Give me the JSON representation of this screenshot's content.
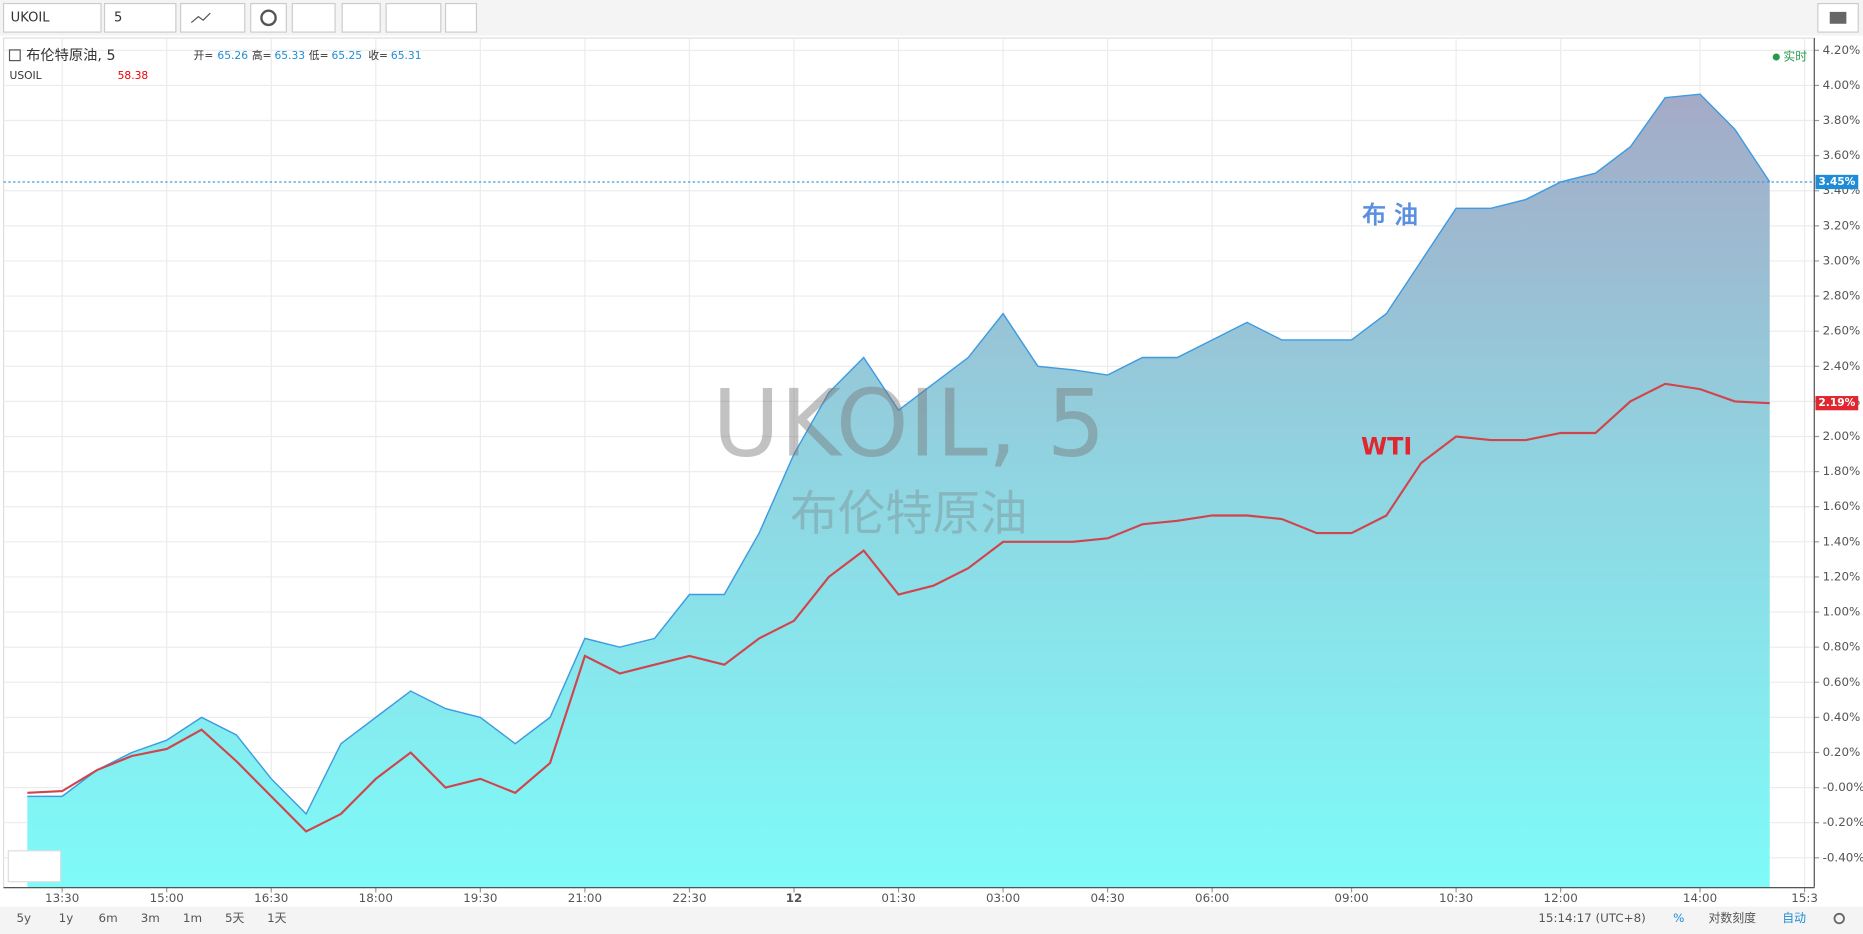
{
  "toolbar": {
    "symbol": "UKOIL",
    "interval": "5"
  },
  "legend": {
    "open_label": "开=",
    "open": 65.26,
    "high_label": "高=",
    "high": 65.33,
    "low_label": "低=",
    "low": 65.25,
    "close_label": "收=",
    "close": 65.31,
    "usoil_value": 58.38
  },
  "status": "实时",
  "watermark": {
    "symbol": "UKOIL, 5",
    "name": "布伦特原油"
  },
  "chart_data": {
    "type": "line",
    "categories": [
      null,
      "13:30",
      null,
      null,
      "15:00",
      null,
      null,
      "16:30",
      null,
      null,
      "18:00",
      null,
      null,
      "19:30",
      null,
      null,
      "21:00",
      null,
      null,
      "22:30",
      null,
      null,
      "12",
      null,
      null,
      "01:30",
      null,
      null,
      "03:00",
      null,
      null,
      "04:30",
      null,
      null,
      "06:00",
      null,
      null,
      null,
      "09:00",
      null,
      null,
      "10:30",
      null,
      null,
      "12:00",
      null,
      null,
      null,
      "14:00",
      null,
      null,
      "15:3"
    ],
    "series": [
      {
        "name": "布伦特原油, 5",
        "color": "#3d9be0",
        "area": true,
        "last_label": {
          "value": 3.45,
          "label": "3.45%"
        },
        "values": [
          -0.05,
          -0.05,
          0.1,
          0.2,
          0.27,
          0.4,
          0.3,
          0.05,
          -0.15,
          0.25,
          0.4,
          0.55,
          0.45,
          0.4,
          0.25,
          0.4,
          0.85,
          0.8,
          0.85,
          1.1,
          1.1,
          1.45,
          1.9,
          2.25,
          2.45,
          2.15,
          2.3,
          2.45,
          2.7,
          2.4,
          2.38,
          2.35,
          2.45,
          2.45,
          2.55,
          2.65,
          2.55,
          2.55,
          2.55,
          2.7,
          3.0,
          3.3,
          3.3,
          3.35,
          3.45,
          3.5,
          3.65,
          3.93,
          3.95,
          3.75,
          3.45,
          null
        ]
      },
      {
        "name": "USOIL",
        "color": "#d0454d",
        "area": false,
        "last_label": {
          "value": 2.19,
          "label": "2.19%"
        },
        "values": [
          -0.03,
          -0.02,
          0.1,
          0.18,
          0.22,
          0.33,
          0.15,
          -0.05,
          -0.25,
          -0.15,
          0.05,
          0.2,
          0.0,
          0.05,
          -0.03,
          0.14,
          0.75,
          0.65,
          0.7,
          0.75,
          0.7,
          0.85,
          0.95,
          1.2,
          1.35,
          1.1,
          1.15,
          1.25,
          1.4,
          1.4,
          1.4,
          1.42,
          1.5,
          1.52,
          1.55,
          1.55,
          1.53,
          1.45,
          1.45,
          1.55,
          1.85,
          2.0,
          1.98,
          1.98,
          2.02,
          2.02,
          2.2,
          2.3,
          2.27,
          2.2,
          2.19,
          null
        ]
      }
    ],
    "ylim": [
      -0.57,
      4.27
    ],
    "yticks": [
      {
        "value": -0.4,
        "label": "-0.40%"
      },
      {
        "value": -0.2,
        "label": "-0.20%"
      },
      {
        "value": 0,
        "label": "-0.00%"
      },
      {
        "value": 0.2,
        "label": "0.20%"
      },
      {
        "value": 0.4,
        "label": "0.40%"
      },
      {
        "value": 0.6,
        "label": "0.60%"
      },
      {
        "value": 0.8,
        "label": "0.80%"
      },
      {
        "value": 1,
        "label": "1.00%"
      },
      {
        "value": 1.2,
        "label": "1.20%"
      },
      {
        "value": 1.4,
        "label": "1.40%"
      },
      {
        "value": 1.6,
        "label": "1.60%"
      },
      {
        "value": 1.8,
        "label": "1.80%"
      },
      {
        "value": 2,
        "label": "2.00%"
      },
      {
        "value": 2.2,
        "label": "2.20%"
      },
      {
        "value": 2.4,
        "label": "2.40%"
      },
      {
        "value": 2.6,
        "label": "2.60%"
      },
      {
        "value": 2.8,
        "label": "2.80%"
      },
      {
        "value": 3,
        "label": "3.00%"
      },
      {
        "value": 3.2,
        "label": "3.20%"
      },
      {
        "value": 3.4,
        "label": "3.40%"
      },
      {
        "value": 3.6,
        "label": "3.60%"
      },
      {
        "value": 3.8,
        "label": "3.80%"
      },
      {
        "value": 4,
        "label": "4.00%"
      },
      {
        "value": 4.2,
        "label": "4.20%"
      }
    ],
    "grid": true,
    "annotations": [
      {
        "text": "布 油",
        "color": "#5b8fe0"
      },
      {
        "text": "WTI",
        "color": "#e0262e"
      }
    ]
  },
  "bottom_bar": {
    "ranges": [
      "5y",
      "1y",
      "6m",
      "3m",
      "1m",
      "5天",
      "1天"
    ],
    "clock": "15:14:17 (UTC+8)",
    "percent": "%",
    "log": "对数刻度",
    "auto": "自动"
  }
}
